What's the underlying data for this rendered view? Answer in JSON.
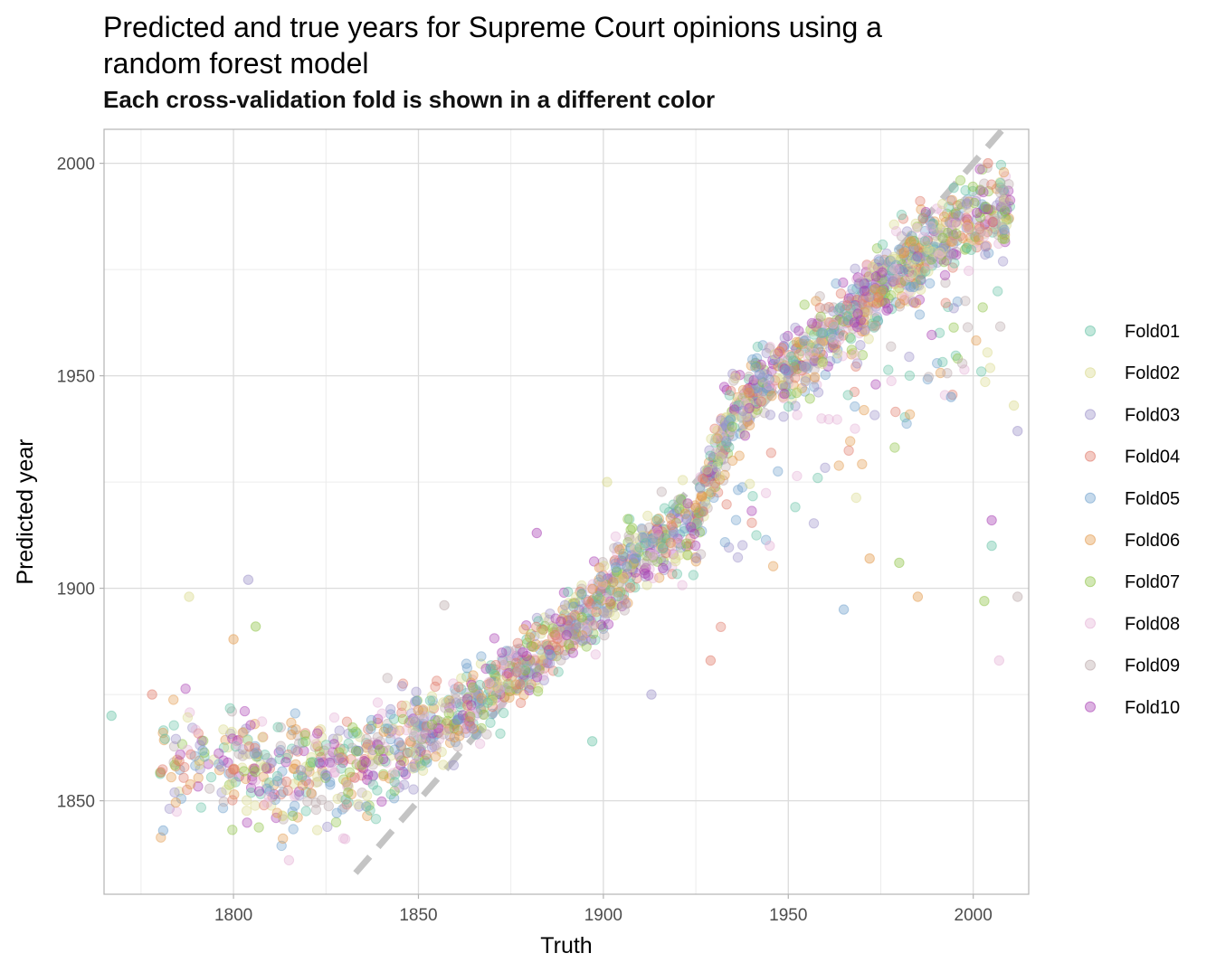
{
  "chart_data": {
    "type": "scatter",
    "title": "Predicted and true years for Supreme Court opinions using a random forest model",
    "subtitle": "Each cross-validation fold is shown in a different color",
    "xlabel": "Truth",
    "ylabel": "Predicted year",
    "xlim": [
      1765,
      2015
    ],
    "ylim": [
      1828,
      2008
    ],
    "x_ticks": [
      1800,
      1850,
      1900,
      1950,
      2000
    ],
    "y_ticks": [
      1850,
      1900,
      1950,
      2000
    ],
    "grid": true,
    "legend_position": "right",
    "reference_line": {
      "slope": 1,
      "intercept": 0,
      "style": "dashed",
      "color": "#c4c4c4"
    },
    "series": [
      {
        "name": "Fold01",
        "color": "#66c2a5"
      },
      {
        "name": "Fold02",
        "color": "#d9d98c"
      },
      {
        "name": "Fold03",
        "color": "#9b90c8"
      },
      {
        "name": "Fold04",
        "color": "#e07a6a"
      },
      {
        "name": "Fold05",
        "color": "#6fa0cc"
      },
      {
        "name": "Fold06",
        "color": "#e39a4c"
      },
      {
        "name": "Fold07",
        "color": "#8fc447"
      },
      {
        "name": "Fold08",
        "color": "#e5b3d6"
      },
      {
        "name": "Fold09",
        "color": "#bba9ab"
      },
      {
        "name": "Fold10",
        "color": "#a83fb3"
      }
    ],
    "outliers": [
      {
        "x": 1767,
        "y": 1870
      },
      {
        "x": 1788,
        "y": 1898
      },
      {
        "x": 1804,
        "y": 1902
      },
      {
        "x": 1778,
        "y": 1875
      },
      {
        "x": 1781,
        "y": 1843
      },
      {
        "x": 1800,
        "y": 1888
      },
      {
        "x": 1806,
        "y": 1891
      },
      {
        "x": 1815,
        "y": 1836
      },
      {
        "x": 1857,
        "y": 1896
      },
      {
        "x": 1882,
        "y": 1913
      },
      {
        "x": 1897,
        "y": 1864
      },
      {
        "x": 1901,
        "y": 1925
      },
      {
        "x": 1913,
        "y": 1875
      },
      {
        "x": 1929,
        "y": 1883
      },
      {
        "x": 1965,
        "y": 1895
      },
      {
        "x": 1985,
        "y": 1898
      },
      {
        "x": 2003,
        "y": 1897
      },
      {
        "x": 2007,
        "y": 1883
      },
      {
        "x": 2012,
        "y": 1898
      },
      {
        "x": 2005,
        "y": 1916
      },
      {
        "x": 2005,
        "y": 1910
      },
      {
        "x": 2011,
        "y": 1943
      },
      {
        "x": 2012,
        "y": 1937
      },
      {
        "x": 2004,
        "y": 2000
      },
      {
        "x": 1994,
        "y": 1945
      },
      {
        "x": 1972,
        "y": 1907
      },
      {
        "x": 1980,
        "y": 1906
      },
      {
        "x": 1945,
        "y": 1910
      }
    ],
    "cluster_centers": [
      {
        "x": 1790,
        "y": 1860
      },
      {
        "x": 1810,
        "y": 1857
      },
      {
        "x": 1830,
        "y": 1857
      },
      {
        "x": 1850,
        "y": 1865
      },
      {
        "x": 1865,
        "y": 1872
      },
      {
        "x": 1880,
        "y": 1884
      },
      {
        "x": 1895,
        "y": 1893
      },
      {
        "x": 1910,
        "y": 1908
      },
      {
        "x": 1925,
        "y": 1915
      },
      {
        "x": 1935,
        "y": 1942
      },
      {
        "x": 1950,
        "y": 1952
      },
      {
        "x": 1965,
        "y": 1962
      },
      {
        "x": 1980,
        "y": 1975
      },
      {
        "x": 1995,
        "y": 1985
      },
      {
        "x": 2005,
        "y": 1988
      }
    ]
  },
  "legend": {
    "items": [
      "Fold01",
      "Fold02",
      "Fold03",
      "Fold04",
      "Fold05",
      "Fold06",
      "Fold07",
      "Fold08",
      "Fold09",
      "Fold10"
    ]
  }
}
